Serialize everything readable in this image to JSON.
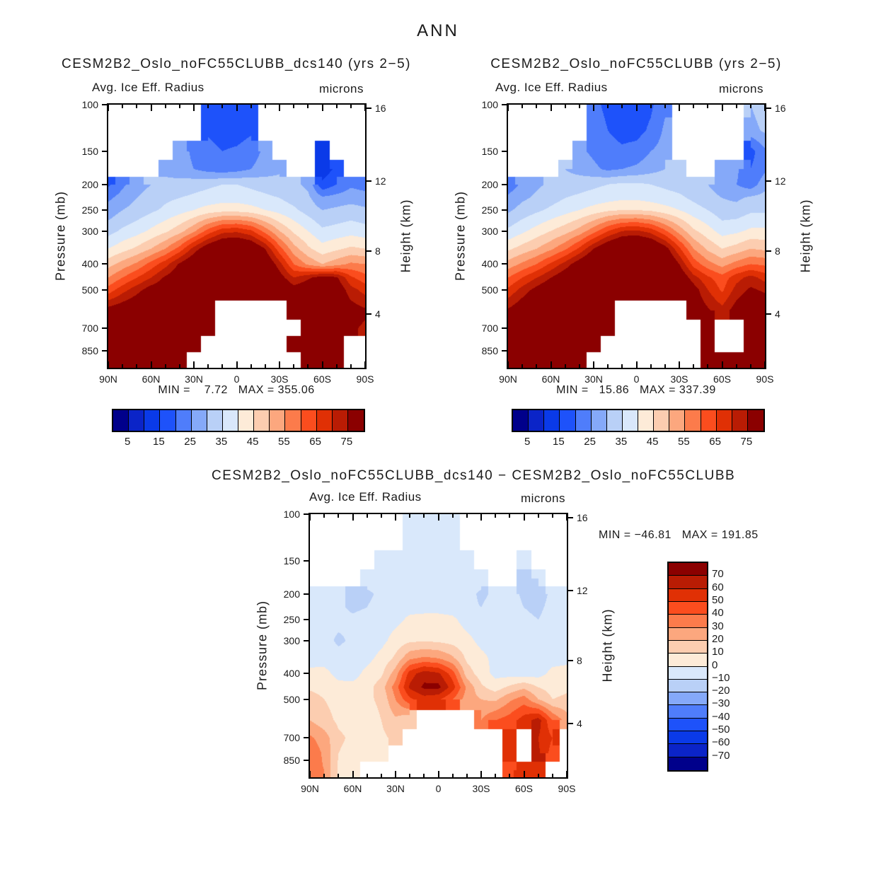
{
  "figure_title": "ANN",
  "palette": [
    "#00008B",
    "#0B24C8",
    "#0A3AE8",
    "#1E52FA",
    "#4F7DFB",
    "#85A9F9",
    "#B9D0F7",
    "#D9E8FB",
    "#FDEBD8",
    "#FCCDB0",
    "#FCA77E",
    "#FC7B4B",
    "#FB4D1E",
    "#E03005",
    "#B91C04",
    "#8B0000"
  ],
  "axes": {
    "pressure_label": "Pressure (mb)",
    "height_label": "Height (km)",
    "lat_tick_labels": [
      "90N",
      "60N",
      "30N",
      "0",
      "30S",
      "60S",
      "90S"
    ],
    "pressure_tick_labels": [
      "100",
      "150",
      "200",
      "250",
      "300",
      "400",
      "500",
      "700",
      "850"
    ],
    "pressure_tick_values": [
      100,
      150,
      200,
      250,
      300,
      400,
      500,
      700,
      850
    ],
    "height_tick_labels": [
      "16",
      "12",
      "8",
      "4"
    ],
    "height_tick_pressures": [
      103,
      194,
      356.5,
      616.6
    ],
    "lat_range_deg": [
      90,
      -90
    ],
    "pressure_top_mb": 100,
    "pressure_bottom_mb": 985
  },
  "chart_data": [
    {
      "type": "filled-contour",
      "title": "CESM2B2_Oslo_noFC55CLUBB_dcs140 (yrs 2−5)",
      "field": "Avg. Ice Eff. Radius",
      "units": "microns",
      "stats": "MIN =    7.72   MAX = 355.06",
      "min": 7.72,
      "max": 355.06,
      "contour_first_edge": 5,
      "contour_step": 5,
      "n_bins": 16,
      "colorbar_orientation": "horizontal",
      "colorbar_labels": [
        "5",
        "15",
        "25",
        "35",
        "45",
        "55",
        "65",
        "75"
      ],
      "colorbar_label_boundaries": [
        1,
        3,
        5,
        7,
        9,
        11,
        13,
        15
      ],
      "lats": [
        90,
        80,
        70,
        60,
        50,
        40,
        30,
        20,
        10,
        0,
        -10,
        -20,
        -30,
        -40,
        -50,
        -60,
        -70,
        -80,
        -90
      ],
      "pressures": [
        100,
        125,
        150,
        175,
        200,
        225,
        250,
        300,
        350,
        400,
        450,
        500,
        600,
        700,
        800,
        925
      ],
      "values": [
        [
          null,
          null,
          null,
          null,
          null,
          null,
          null,
          17,
          15,
          16,
          18,
          null,
          null,
          null,
          null,
          null,
          null,
          null,
          null
        ],
        [
          null,
          null,
          null,
          null,
          null,
          null,
          null,
          19,
          17,
          17,
          19,
          null,
          null,
          null,
          null,
          null,
          null,
          null,
          null
        ],
        [
          null,
          null,
          null,
          null,
          null,
          27,
          24,
          22,
          20,
          21,
          23,
          26,
          null,
          null,
          null,
          14,
          null,
          null,
          null
        ],
        [
          null,
          null,
          null,
          null,
          29,
          27,
          25,
          23,
          22,
          23,
          25,
          27,
          29,
          null,
          null,
          12,
          16,
          null,
          null
        ],
        [
          19,
          24,
          28,
          30,
          31,
          32,
          33,
          34,
          35,
          35,
          34,
          33,
          32,
          31,
          29,
          16,
          20,
          24,
          23
        ],
        [
          24,
          27,
          30,
          32,
          34,
          35,
          36,
          37,
          38,
          38,
          37,
          36,
          35,
          33,
          31,
          26,
          27,
          28,
          27
        ],
        [
          27,
          30,
          32,
          34,
          36,
          38,
          40,
          42,
          43,
          43,
          42,
          40,
          38,
          36,
          33,
          30,
          31,
          32,
          31
        ],
        [
          33,
          36,
          38,
          41,
          44,
          48,
          54,
          62,
          68,
          69,
          66,
          58,
          50,
          44,
          40,
          36,
          37,
          38,
          37
        ],
        [
          40,
          43,
          46,
          50,
          55,
          62,
          72,
          80,
          85,
          86,
          83,
          75,
          62,
          52,
          46,
          42,
          44,
          46,
          45
        ],
        [
          48,
          52,
          56,
          62,
          68,
          76,
          82,
          88,
          90,
          90,
          88,
          82,
          72,
          60,
          54,
          50,
          53,
          56,
          55
        ],
        [
          55,
          60,
          65,
          70,
          76,
          80,
          85,
          90,
          92,
          92,
          90,
          85,
          78,
          70,
          74,
          78,
          76,
          66,
          62
        ],
        [
          62,
          68,
          73,
          78,
          80,
          84,
          88,
          92,
          94,
          94,
          92,
          88,
          84,
          78,
          80,
          82,
          80,
          72,
          68
        ],
        [
          78,
          80,
          82,
          84,
          85,
          86,
          88,
          82,
          null,
          null,
          null,
          null,
          null,
          80,
          82,
          84,
          82,
          78,
          76
        ],
        [
          76,
          80,
          82,
          84,
          85,
          86,
          84,
          80,
          null,
          null,
          null,
          null,
          null,
          null,
          80,
          82,
          80,
          76,
          74
        ],
        [
          78,
          82,
          84,
          85,
          86,
          84,
          82,
          null,
          null,
          null,
          null,
          null,
          null,
          84,
          84,
          86,
          84,
          null,
          null
        ],
        [
          80,
          84,
          86,
          86,
          86,
          84,
          null,
          null,
          null,
          null,
          null,
          null,
          null,
          null,
          84,
          86,
          84,
          null,
          null
        ]
      ]
    },
    {
      "type": "filled-contour",
      "title": "CESM2B2_Oslo_noFC55CLUBB (yrs 2−5)",
      "field": "Avg. Ice Eff. Radius",
      "units": "microns",
      "stats": "MIN =   15.86   MAX = 337.39",
      "min": 15.86,
      "max": 337.39,
      "contour_first_edge": 5,
      "contour_step": 5,
      "n_bins": 16,
      "colorbar_orientation": "horizontal",
      "colorbar_labels": [
        "5",
        "15",
        "25",
        "35",
        "45",
        "55",
        "65",
        "75"
      ],
      "colorbar_label_boundaries": [
        1,
        3,
        5,
        7,
        9,
        11,
        13,
        15
      ],
      "lats": [
        90,
        80,
        70,
        60,
        50,
        40,
        30,
        20,
        10,
        0,
        -10,
        -20,
        -30,
        -40,
        -50,
        -60,
        -70,
        -80,
        -90
      ],
      "pressures": [
        100,
        125,
        150,
        175,
        200,
        225,
        250,
        300,
        350,
        400,
        450,
        500,
        600,
        700,
        800,
        925
      ],
      "values": [
        [
          null,
          null,
          null,
          null,
          null,
          null,
          22,
          18,
          16,
          17,
          19,
          24,
          null,
          null,
          null,
          null,
          null,
          30,
          33
        ],
        [
          null,
          null,
          null,
          null,
          null,
          null,
          24,
          20,
          18,
          18,
          21,
          26,
          null,
          null,
          null,
          null,
          null,
          28,
          31
        ],
        [
          null,
          null,
          null,
          null,
          null,
          26,
          24,
          22,
          21,
          22,
          25,
          27,
          null,
          null,
          null,
          null,
          null,
          18,
          24
        ],
        [
          null,
          null,
          null,
          null,
          30,
          28,
          26,
          24,
          25,
          26,
          28,
          30,
          31,
          null,
          null,
          28,
          26,
          20,
          24
        ],
        [
          22,
          26,
          29,
          31,
          32,
          33,
          34,
          35,
          36,
          36,
          35,
          34,
          33,
          32,
          30,
          27,
          25,
          22,
          28
        ],
        [
          26,
          29,
          31,
          33,
          35,
          36,
          37,
          38,
          39,
          39,
          38,
          37,
          36,
          34,
          32,
          30,
          29,
          31,
          32
        ],
        [
          29,
          32,
          34,
          36,
          38,
          40,
          42,
          44,
          45,
          45,
          44,
          42,
          40,
          37,
          35,
          32,
          32,
          34,
          34
        ],
        [
          36,
          39,
          42,
          45,
          48,
          52,
          58,
          65,
          70,
          71,
          68,
          61,
          53,
          46,
          42,
          38,
          39,
          41,
          41
        ],
        [
          44,
          47,
          50,
          54,
          59,
          66,
          75,
          82,
          87,
          88,
          85,
          78,
          66,
          55,
          49,
          45,
          47,
          50,
          49
        ],
        [
          52,
          56,
          60,
          66,
          72,
          79,
          85,
          90,
          92,
          92,
          90,
          85,
          75,
          63,
          57,
          53,
          57,
          60,
          59
        ],
        [
          60,
          65,
          70,
          75,
          80,
          84,
          88,
          92,
          94,
          94,
          92,
          88,
          81,
          72,
          66,
          62,
          68,
          72,
          68
        ],
        [
          66,
          72,
          77,
          81,
          84,
          87,
          90,
          94,
          95,
          95,
          94,
          90,
          85,
          78,
          70,
          64,
          72,
          76,
          74
        ],
        [
          76,
          80,
          84,
          86,
          87,
          88,
          90,
          84,
          null,
          null,
          null,
          null,
          null,
          80,
          76,
          72,
          78,
          82,
          80
        ],
        [
          80,
          84,
          86,
          87,
          87,
          88,
          86,
          82,
          null,
          null,
          null,
          null,
          null,
          null,
          78,
          null,
          null,
          82,
          80
        ],
        [
          82,
          85,
          86,
          87,
          87,
          86,
          84,
          null,
          null,
          null,
          null,
          null,
          null,
          null,
          80,
          null,
          null,
          83,
          82
        ],
        [
          84,
          86,
          87,
          87,
          86,
          85,
          null,
          null,
          null,
          null,
          null,
          null,
          null,
          null,
          84,
          86,
          85,
          84,
          83
        ]
      ]
    },
    {
      "type": "filled-contour-difference",
      "title": "CESM2B2_Oslo_noFC55CLUBB_dcs140 − CESM2B2_Oslo_noFC55CLUBB",
      "field": "Avg. Ice Eff. Radius",
      "units": "microns",
      "stats": "MIN = −46.81   MAX = 191.85",
      "min": -46.81,
      "max": 191.85,
      "contour_first_edge": -70,
      "contour_step": 10,
      "n_bins": 16,
      "colorbar_orientation": "vertical",
      "colorbar_labels": [
        "70",
        "60",
        "50",
        "40",
        "30",
        "20",
        "10",
        "0",
        "−10",
        "−20",
        "−30",
        "−40",
        "−50",
        "−60",
        "−70"
      ],
      "colorbar_label_boundaries": [
        1,
        2,
        3,
        4,
        5,
        6,
        7,
        8,
        9,
        10,
        11,
        12,
        13,
        14,
        15
      ],
      "lats": [
        90,
        80,
        70,
        60,
        50,
        40,
        30,
        20,
        10,
        0,
        -10,
        -20,
        -30,
        -40,
        -50,
        -60,
        -70,
        -80,
        -90
      ],
      "pressures": [
        100,
        125,
        150,
        175,
        200,
        225,
        250,
        300,
        350,
        400,
        450,
        500,
        600,
        700,
        800,
        925
      ],
      "values": [
        [
          null,
          null,
          null,
          null,
          null,
          null,
          null,
          -4,
          -4,
          -4,
          -4,
          null,
          null,
          null,
          null,
          null,
          null,
          null,
          null
        ],
        [
          null,
          null,
          null,
          null,
          null,
          null,
          null,
          -4,
          -4,
          -4,
          -4,
          null,
          null,
          null,
          null,
          null,
          null,
          null,
          null
        ],
        [
          null,
          null,
          null,
          null,
          null,
          -4,
          -4,
          -4,
          -4,
          -4,
          -4,
          -4,
          null,
          null,
          null,
          -8,
          null,
          null,
          null
        ],
        [
          null,
          null,
          null,
          null,
          -5,
          -5,
          -4,
          -4,
          -4,
          -4,
          -4,
          -4,
          -5,
          null,
          null,
          -12,
          -10,
          null,
          null
        ],
        [
          -5,
          -6,
          -8,
          -12,
          -12,
          -8,
          -5,
          -4,
          -4,
          -4,
          -5,
          -6,
          -12,
          -8,
          -6,
          -12,
          -14,
          -8,
          -5
        ],
        [
          -5,
          -6,
          -8,
          -12,
          -10,
          -6,
          -4,
          -3,
          -3,
          -3,
          -4,
          -8,
          -10,
          -6,
          -6,
          -10,
          -12,
          -7,
          -5
        ],
        [
          -5,
          -6,
          -7,
          -8,
          -6,
          -5,
          -3,
          2,
          3,
          3,
          2,
          -4,
          -6,
          -5,
          -5,
          -8,
          -10,
          -6,
          -4
        ],
        [
          -4,
          -6,
          -12,
          -8,
          -5,
          -3,
          4,
          8,
          9,
          8,
          6,
          3,
          -3,
          -5,
          -6,
          -8,
          -8,
          -5,
          -4
        ],
        [
          -3,
          -4,
          -6,
          -5,
          -3,
          3,
          12,
          28,
          32,
          30,
          22,
          8,
          3,
          -3,
          -5,
          -6,
          -6,
          -4,
          -3
        ],
        [
          2,
          3,
          -3,
          -4,
          3,
          8,
          25,
          55,
          66,
          62,
          45,
          15,
          5,
          -3,
          -4,
          -5,
          -4,
          3,
          4
        ],
        [
          8,
          6,
          3,
          3,
          6,
          15,
          35,
          62,
          72,
          73,
          55,
          28,
          12,
          5,
          12,
          18,
          10,
          6,
          8
        ],
        [
          15,
          10,
          6,
          5,
          8,
          12,
          30,
          48,
          55,
          52,
          40,
          25,
          20,
          18,
          28,
          35,
          20,
          10,
          12
        ],
        [
          20,
          14,
          8,
          6,
          5,
          10,
          18,
          10,
          null,
          null,
          null,
          null,
          30,
          40,
          45,
          55,
          65,
          40,
          25
        ],
        [
          32,
          25,
          12,
          8,
          6,
          8,
          12,
          null,
          null,
          null,
          null,
          null,
          null,
          null,
          50,
          null,
          60,
          50,
          null
        ],
        [
          38,
          28,
          10,
          6,
          4,
          3,
          null,
          null,
          null,
          null,
          null,
          null,
          null,
          null,
          55,
          null,
          62,
          45,
          null
        ],
        [
          34,
          30,
          8,
          4,
          null,
          null,
          null,
          null,
          null,
          null,
          null,
          null,
          null,
          null,
          48,
          55,
          50,
          null,
          null
        ]
      ]
    }
  ]
}
